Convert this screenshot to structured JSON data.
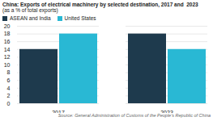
{
  "chart_data": {
    "type": "bar",
    "title": "China: Exports of electrical machinery by selected destination, 2017 and  2023",
    "subtitle": "(as a % of total exports)",
    "source": "Source: General Administration of Customs of the People’s Republic of China",
    "categories": [
      "2017",
      "2023"
    ],
    "series": [
      {
        "name": "ASEAN and India",
        "color": "#1e3a4d",
        "values": [
          14,
          18
        ]
      },
      {
        "name": "United States",
        "color": "#29b8d4",
        "values": [
          18,
          14
        ]
      }
    ],
    "ylim": [
      0,
      20
    ],
    "yticks": [
      0,
      2,
      4,
      6,
      8,
      10,
      12,
      14,
      16,
      18,
      20
    ],
    "grid": true,
    "legend": "upper left"
  }
}
